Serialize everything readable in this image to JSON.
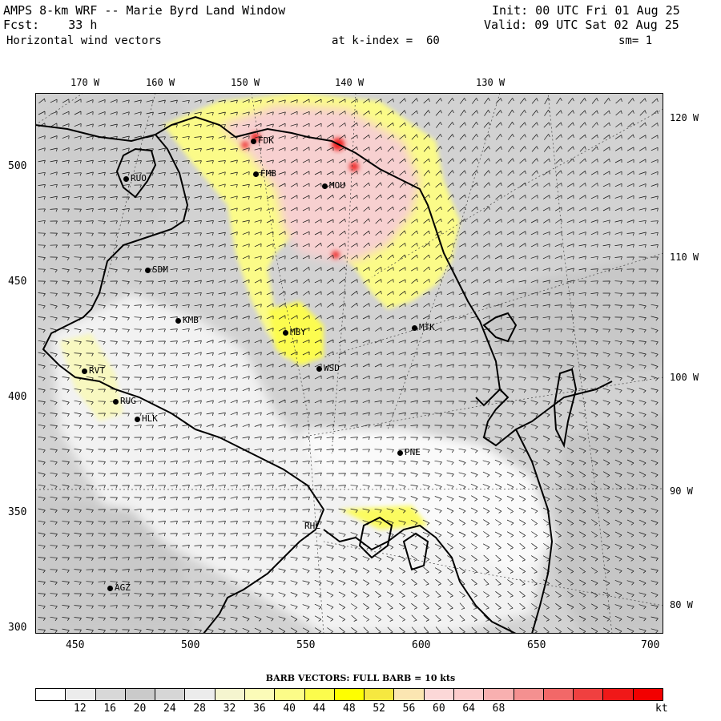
{
  "header": {
    "line1_left": "AMPS 8-km WRF -- Marie Byrd Land Window",
    "line2_left": "Fcst:    33 h",
    "line3_left": "Horizontal wind vectors",
    "line1_right": "Init: 00 UTC Fri 01 Aug 25",
    "line2_right": "Valid: 09 UTC Sat 02 Aug 25",
    "kindex": "at k-index =  60",
    "sm": "sm= 1"
  },
  "lon_top": [
    "170 W",
    "160 W",
    "150 W",
    "140 W",
    "130 W"
  ],
  "lon_right": [
    "120 W",
    "110 W",
    "100 W",
    "90 W",
    "80 W"
  ],
  "y_ticks": [
    "500",
    "450",
    "400",
    "350",
    "300"
  ],
  "x_ticks": [
    "450",
    "500",
    "550",
    "600",
    "650",
    "700"
  ],
  "stations": [
    "FDK",
    "FMB",
    "MOU",
    "RUO",
    "SDM",
    "KMB",
    "MBY",
    "WSD",
    "MTK",
    "RVT",
    "RUG",
    "HLK",
    "PNE",
    "RHL",
    "AGZ"
  ],
  "legend": {
    "title": "BARB VECTORS:  FULL BARB = 10 kts",
    "labels": [
      "12",
      "16",
      "20",
      "24",
      "28",
      "32",
      "36",
      "40",
      "44",
      "48",
      "52",
      "56",
      "60",
      "64",
      "68"
    ],
    "unit": "kt",
    "colors": [
      "#ffffff",
      "#ececec",
      "#d8d8d8",
      "#cacaca",
      "#d6d6d6",
      "#ececec",
      "#f5f5cf",
      "#fbfbb8",
      "#fcfc88",
      "#fcfc4c",
      "#fefe00",
      "#f6e840",
      "#fbe6b2",
      "#fcd8d8",
      "#fccccc",
      "#f8b0b0",
      "#f49090",
      "#f26868",
      "#f04040",
      "#f01818",
      "#f20000"
    ]
  }
}
